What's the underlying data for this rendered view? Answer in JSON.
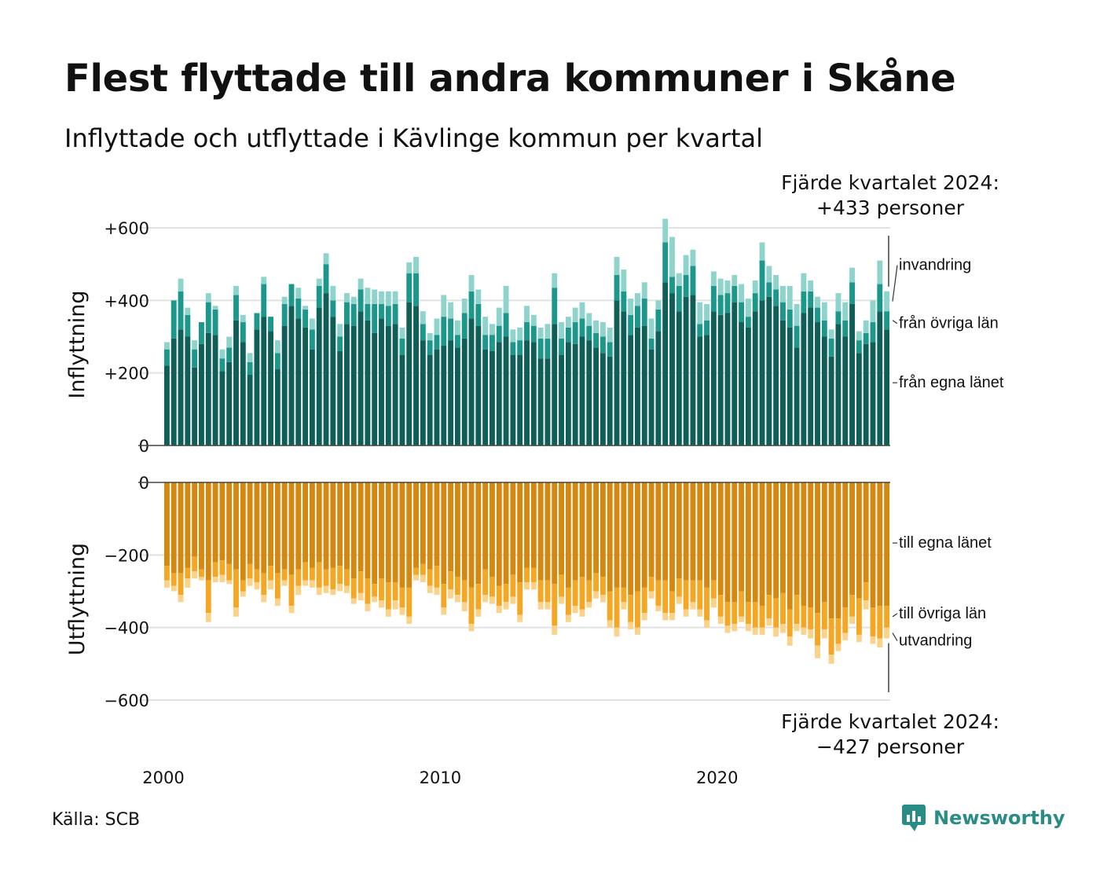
{
  "title": "Flest flyttade till andra kommuner i Skåne",
  "subtitle": "Inflyttade och utflyttade i Kävlinge kommun per kvartal",
  "source": "Källa: SCB",
  "brand": {
    "name": "Newsworthy",
    "color": "#2a8c86",
    "icon": "newsworthy-logo-icon"
  },
  "chart_data": [
    {
      "type": "bar",
      "stacked": true,
      "panel": "Inflyttning",
      "ylabel": "Inflyttning",
      "ylim": [
        0,
        600
      ],
      "y_ticks": [
        {
          "value": 0,
          "label": "0"
        },
        {
          "value": 200,
          "label": "+200"
        },
        {
          "value": 400,
          "label": "+400"
        },
        {
          "value": 600,
          "label": "+600"
        }
      ],
      "x_ticks": [
        {
          "value": 2000,
          "label": "2000"
        },
        {
          "value": 2010,
          "label": "2010"
        },
        {
          "value": 2020,
          "label": "2020"
        }
      ],
      "x_start": 2000,
      "periods_per_year": 4,
      "grid": true,
      "series": [
        {
          "name": "från egna länet",
          "color": "#0f5e57",
          "values": [
            220,
            295,
            320,
            300,
            215,
            280,
            310,
            305,
            205,
            230,
            345,
            285,
            195,
            320,
            355,
            315,
            210,
            330,
            385,
            350,
            325,
            265,
            380,
            420,
            355,
            260,
            335,
            330,
            370,
            345,
            310,
            350,
            330,
            335,
            250,
            395,
            385,
            290,
            250,
            265,
            275,
            290,
            270,
            295,
            350,
            330,
            265,
            260,
            285,
            300,
            250,
            250,
            290,
            285,
            240,
            240,
            335,
            250,
            285,
            280,
            300,
            290,
            270,
            255,
            245,
            400,
            370,
            305,
            325,
            330,
            265,
            315,
            450,
            420,
            370,
            410,
            415,
            300,
            305,
            370,
            360,
            365,
            395,
            340,
            325,
            370,
            400,
            410,
            385,
            345,
            325,
            270,
            365,
            380,
            340,
            300,
            245,
            335,
            300,
            390,
            255,
            280,
            285,
            370,
            320
          ]
        },
        {
          "name": "från övriga län",
          "color": "#1b978c",
          "values": [
            45,
            105,
            105,
            60,
            50,
            60,
            85,
            70,
            35,
            40,
            70,
            55,
            35,
            45,
            90,
            40,
            45,
            60,
            60,
            55,
            50,
            55,
            60,
            80,
            45,
            40,
            60,
            60,
            60,
            45,
            80,
            40,
            55,
            55,
            45,
            80,
            90,
            45,
            40,
            40,
            80,
            60,
            35,
            70,
            75,
            60,
            40,
            45,
            45,
            65,
            35,
            40,
            50,
            45,
            55,
            55,
            100,
            45,
            40,
            60,
            50,
            40,
            40,
            45,
            40,
            70,
            55,
            55,
            60,
            75,
            30,
            60,
            110,
            45,
            70,
            60,
            80,
            35,
            40,
            70,
            55,
            55,
            45,
            55,
            30,
            50,
            110,
            40,
            45,
            50,
            50,
            60,
            60,
            45,
            40,
            45,
            50,
            35,
            45,
            60,
            35,
            30,
            55,
            75,
            50
          ]
        },
        {
          "name": "invandring",
          "color": "#8fd4cc",
          "values": [
            20,
            0,
            35,
            20,
            25,
            0,
            25,
            10,
            25,
            30,
            25,
            20,
            25,
            0,
            20,
            0,
            35,
            20,
            0,
            30,
            10,
            30,
            20,
            30,
            40,
            35,
            25,
            20,
            30,
            45,
            40,
            35,
            40,
            35,
            30,
            30,
            45,
            35,
            20,
            45,
            60,
            45,
            40,
            40,
            45,
            40,
            50,
            30,
            50,
            75,
            35,
            35,
            45,
            30,
            30,
            40,
            40,
            45,
            30,
            40,
            45,
            35,
            35,
            40,
            40,
            50,
            60,
            45,
            35,
            45,
            55,
            25,
            65,
            110,
            35,
            55,
            45,
            60,
            45,
            40,
            45,
            35,
            30,
            50,
            50,
            35,
            50,
            45,
            40,
            45,
            65,
            60,
            50,
            30,
            30,
            50,
            25,
            50,
            50,
            40,
            25,
            35,
            60,
            65,
            55
          ]
        }
      ]
    },
    {
      "type": "bar",
      "stacked": true,
      "panel": "Utflyttning",
      "ylabel": "Utflyttning",
      "ylim": [
        -600,
        0
      ],
      "y_ticks": [
        {
          "value": 0,
          "label": "0"
        },
        {
          "value": -200,
          "label": "−200"
        },
        {
          "value": -400,
          "label": "−400"
        },
        {
          "value": -600,
          "label": "−600"
        }
      ],
      "x_ticks": [
        {
          "value": 2000,
          "label": "2000"
        },
        {
          "value": 2010,
          "label": "2010"
        },
        {
          "value": 2020,
          "label": "2020"
        }
      ],
      "x_start": 2000,
      "periods_per_year": 4,
      "grid": true,
      "series": [
        {
          "name": "till egna länet",
          "color": "#d4880f",
          "values": [
            -230,
            -250,
            -250,
            -235,
            -205,
            -240,
            -270,
            -220,
            -215,
            -225,
            -240,
            -270,
            -225,
            -240,
            -250,
            -230,
            -250,
            -240,
            -255,
            -240,
            -220,
            -235,
            -220,
            -240,
            -235,
            -230,
            -240,
            -265,
            -245,
            -265,
            -280,
            -265,
            -275,
            -275,
            -290,
            -290,
            -235,
            -225,
            -240,
            -230,
            -280,
            -245,
            -260,
            -270,
            -290,
            -280,
            -240,
            -260,
            -285,
            -280,
            -255,
            -275,
            -235,
            -235,
            -270,
            -270,
            -280,
            -255,
            -290,
            -270,
            -260,
            -270,
            -250,
            -260,
            -300,
            -290,
            -290,
            -310,
            -300,
            -290,
            -260,
            -270,
            -270,
            -300,
            -265,
            -270,
            -270,
            -270,
            -290,
            -270,
            -310,
            -330,
            -330,
            -300,
            -330,
            -330,
            -340,
            -310,
            -320,
            -305,
            -350,
            -310,
            -340,
            -345,
            -360,
            -330,
            -375,
            -375,
            -345,
            -310,
            -320,
            -275,
            -345,
            -340,
            -340
          ]
        },
        {
          "name": "till övriga län",
          "color": "#f5a623",
          "values": [
            -40,
            -35,
            -60,
            -30,
            -40,
            -20,
            -90,
            -40,
            -40,
            -45,
            -105,
            -30,
            -40,
            -35,
            -60,
            -40,
            -70,
            -30,
            -85,
            -45,
            -50,
            -35,
            -70,
            -45,
            -60,
            -50,
            -45,
            -55,
            -60,
            -70,
            -35,
            -60,
            -75,
            -50,
            -55,
            -80,
            -20,
            -30,
            -45,
            -60,
            -65,
            -50,
            -50,
            -60,
            -100,
            -70,
            -70,
            -55,
            -55,
            -50,
            -60,
            -90,
            -40,
            -40,
            -60,
            -60,
            -115,
            -60,
            -75,
            -70,
            -90,
            -60,
            -50,
            -50,
            -80,
            -110,
            -40,
            -75,
            -100,
            -70,
            -40,
            -70,
            -90,
            -60,
            -50,
            -80,
            -60,
            -80,
            -90,
            -50,
            -60,
            -65,
            -60,
            -70,
            -60,
            -70,
            -60,
            -65,
            -80,
            -85,
            -75,
            -80,
            -60,
            -60,
            -90,
            -75,
            -100,
            -70,
            -70,
            -60,
            -100,
            -50,
            -80,
            -90,
            -60
          ]
        },
        {
          "name": "utvandring",
          "color": "#fbd28a",
          "values": [
            -20,
            -15,
            -20,
            -25,
            -20,
            -10,
            -25,
            -15,
            -20,
            -10,
            -25,
            -15,
            -20,
            -20,
            -20,
            -25,
            -20,
            -15,
            -20,
            -25,
            -15,
            -20,
            -20,
            -20,
            -15,
            -20,
            -20,
            -15,
            -20,
            -20,
            -15,
            -20,
            -20,
            -25,
            -20,
            -20,
            -15,
            -20,
            -20,
            -20,
            -20,
            -25,
            -20,
            -25,
            -20,
            -20,
            -20,
            -20,
            -20,
            -20,
            -20,
            -20,
            -20,
            -20,
            -20,
            -20,
            -25,
            -20,
            -20,
            -20,
            -20,
            -15,
            -20,
            -20,
            -20,
            -25,
            -20,
            -20,
            -20,
            -20,
            -20,
            -15,
            -20,
            -20,
            -20,
            -20,
            -20,
            -20,
            -20,
            -25,
            -20,
            -20,
            -20,
            -15,
            -20,
            -20,
            -20,
            -20,
            -25,
            -25,
            -25,
            -20,
            -20,
            -25,
            -35,
            -25,
            -25,
            -20,
            -20,
            -20,
            -20,
            -25,
            -20,
            -25,
            -30
          ]
        }
      ]
    }
  ],
  "annotations": {
    "top_line1": "Fjärde kvartalet 2024:",
    "top_line2": "+433 personer",
    "bottom_line1": "Fjärde kvartalet 2024:",
    "bottom_line2": "−427 personer"
  }
}
